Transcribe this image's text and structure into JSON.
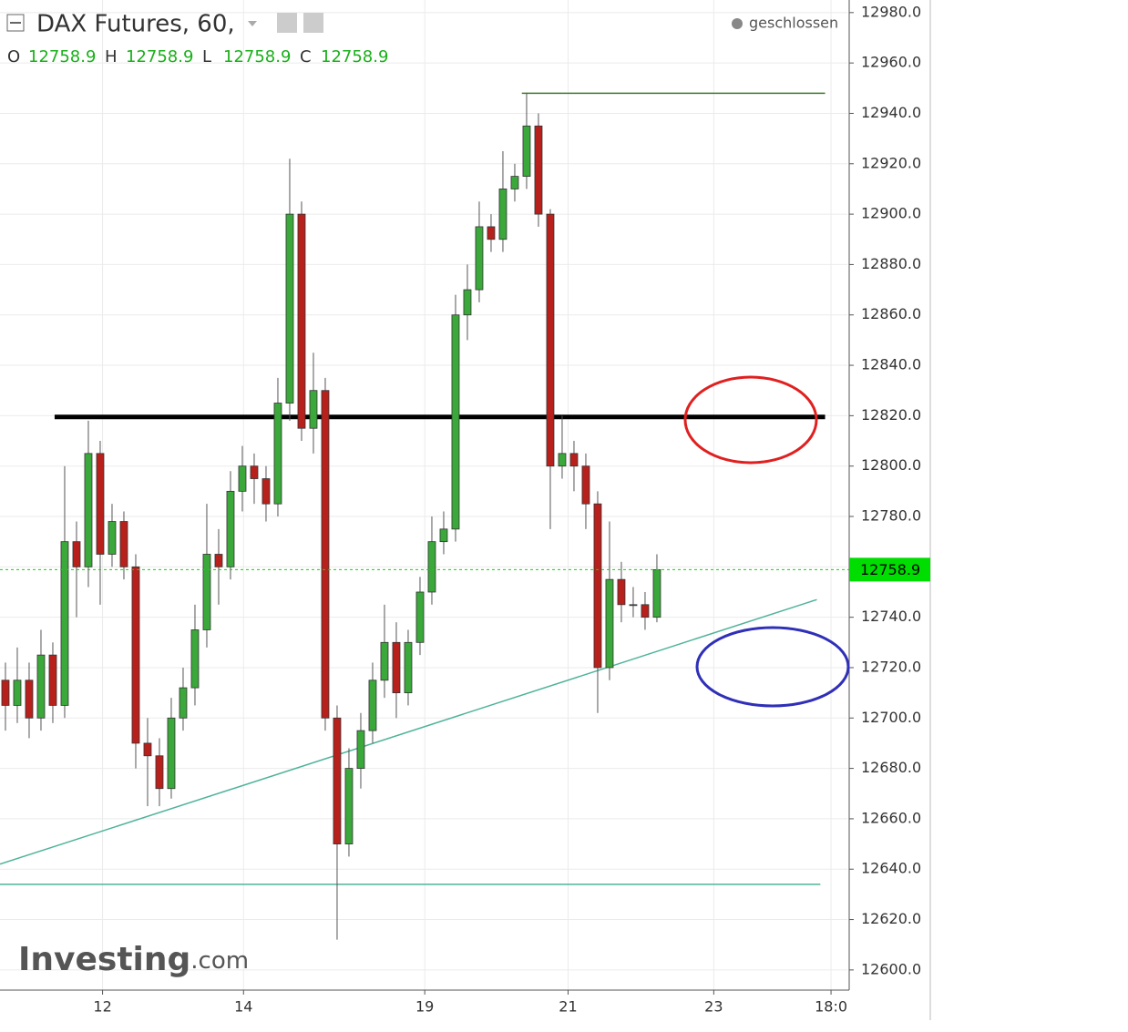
{
  "chart_data": {
    "type": "candlestick",
    "title": "DAX Futures, 60,",
    "status": "geschlossen",
    "ohlc": {
      "labels": [
        "O",
        "H",
        "L",
        "C"
      ],
      "values": [
        12758.9,
        12758.9,
        12758.9,
        12758.9
      ]
    },
    "logo": {
      "main": "Investing",
      "suffix": ".com"
    },
    "up_color": "#3aa83a",
    "down_color": "#b8201c",
    "open": [
      12715,
      12705,
      12715,
      12700,
      12725,
      12705,
      12770,
      12760,
      12805,
      12765,
      12778,
      12760,
      12690,
      12685,
      12672,
      12700,
      12712,
      12735,
      12765,
      12760,
      12790,
      12800,
      12795,
      12785,
      12825,
      12900,
      12815,
      12830,
      12700,
      12650,
      12680,
      12695,
      12715,
      12730,
      12710,
      12730,
      12750,
      12770,
      12775,
      12860,
      12870,
      12895,
      12890,
      12910,
      12915,
      12935,
      12900,
      12800,
      12805,
      12800,
      12785,
      12720,
      12755,
      12745,
      12745,
      12740
    ],
    "high": [
      12722,
      12728,
      12722,
      12735,
      12730,
      12800,
      12778,
      12818,
      12810,
      12785,
      12782,
      12765,
      12700,
      12692,
      12708,
      12720,
      12745,
      12785,
      12775,
      12798,
      12808,
      12805,
      12800,
      12835,
      12922,
      12905,
      12845,
      12835,
      12705,
      12688,
      12702,
      12722,
      12745,
      12738,
      12735,
      12756,
      12780,
      12782,
      12868,
      12880,
      12905,
      12900,
      12925,
      12920,
      12948,
      12940,
      12902,
      12820,
      12810,
      12805,
      12790,
      12778,
      12762,
      12752,
      12750,
      12765
    ],
    "low": [
      12695,
      12698,
      12692,
      12695,
      12698,
      12700,
      12740,
      12752,
      12745,
      12760,
      12755,
      12680,
      12665,
      12665,
      12668,
      12695,
      12705,
      12728,
      12745,
      12755,
      12782,
      12785,
      12778,
      12780,
      12818,
      12810,
      12805,
      12695,
      12612,
      12645,
      12672,
      12690,
      12708,
      12700,
      12705,
      12725,
      12745,
      12765,
      12770,
      12850,
      12865,
      12885,
      12885,
      12905,
      12910,
      12895,
      12775,
      12795,
      12790,
      12775,
      12702,
      12715,
      12738,
      12740,
      12735,
      12738
    ],
    "close": [
      12705,
      12715,
      12700,
      12725,
      12705,
      12770,
      12760,
      12805,
      12765,
      12778,
      12760,
      12690,
      12685,
      12672,
      12700,
      12712,
      12735,
      12765,
      12760,
      12790,
      12800,
      12795,
      12785,
      12825,
      12900,
      12815,
      12830,
      12700,
      12650,
      12680,
      12695,
      12715,
      12730,
      12710,
      12730,
      12750,
      12770,
      12775,
      12860,
      12870,
      12895,
      12890,
      12910,
      12915,
      12935,
      12900,
      12800,
      12805,
      12800,
      12785,
      12720,
      12755,
      12745,
      12745,
      12740,
      12758.9
    ],
    "last_price": {
      "value": 12758.9,
      "color": "#00dd00"
    },
    "hlines": [
      {
        "value": 12819.5,
        "from": 4.15,
        "to": 69.2,
        "color": "#000000",
        "width": 5
      },
      {
        "value": 12948,
        "from": 43.6,
        "to": 69.2,
        "color": "#3d7a2a",
        "width": 1.5
      },
      {
        "value": 12634,
        "from": -0.46,
        "to": 68.8,
        "color": "#4fb39a",
        "width": 1.5
      }
    ],
    "trendline": {
      "x": [
        -0.46,
        68.5
      ],
      "y": [
        12642,
        12747
      ],
      "color": "#4fb39a"
    },
    "xlim": [
      -0.46,
      71.08
    ],
    "ylim": [
      12592,
      12985
    ],
    "xticks": [
      {
        "value": 8.2,
        "label": "12"
      },
      {
        "value": 20.1,
        "label": "14"
      },
      {
        "value": 35.4,
        "label": "19"
      },
      {
        "value": 47.5,
        "label": "21"
      },
      {
        "value": 59.8,
        "label": "23"
      },
      {
        "value": 69.7,
        "label": "18:0"
      }
    ],
    "yticks": [
      {
        "value": 12600,
        "label": "12600.0"
      },
      {
        "value": 12620,
        "label": "12620.0"
      },
      {
        "value": 12640,
        "label": "12640.0"
      },
      {
        "value": 12660,
        "label": "12660.0"
      },
      {
        "value": 12680,
        "label": "12680.0"
      },
      {
        "value": 12700,
        "label": "12700.0"
      },
      {
        "value": 12720,
        "label": "12720.0"
      },
      {
        "value": 12740,
        "label": "12740.0"
      },
      {
        "value": 12760,
        "label": "12760.0"
      },
      {
        "value": 12780,
        "label": "12780.0"
      },
      {
        "value": 12800,
        "label": "12800.0"
      },
      {
        "value": 12820,
        "label": "12820.0"
      },
      {
        "value": 12840,
        "label": "12840.0"
      },
      {
        "value": 12860,
        "label": "12860.0"
      },
      {
        "value": 12880,
        "label": "12880.0"
      },
      {
        "value": 12900,
        "label": "12900.0"
      },
      {
        "value": 12920,
        "label": "12920.0"
      },
      {
        "value": 12940,
        "label": "12940.0"
      },
      {
        "value": 12960,
        "label": "12960.0"
      },
      {
        "value": 12980,
        "label": "12980.0"
      }
    ],
    "grid": true
  }
}
